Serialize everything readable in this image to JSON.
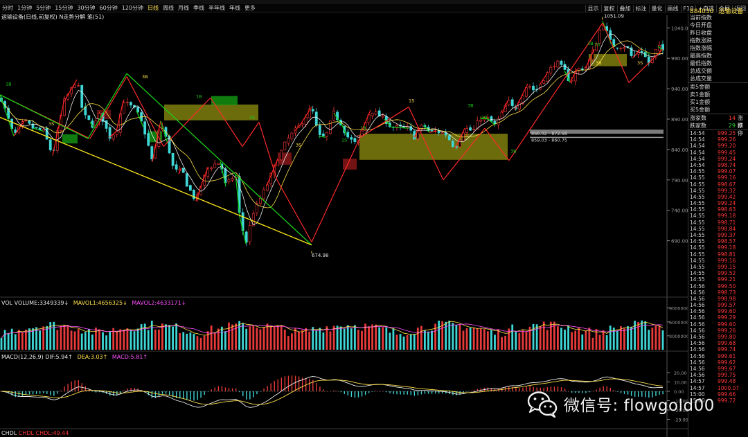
{
  "toolbar": {
    "periods": [
      "分时",
      "1分钟",
      "5分钟",
      "15分钟",
      "30分钟",
      "60分钟",
      "120分钟",
      "日线",
      "周线",
      "月线",
      "季线",
      "半年线",
      "年线",
      "更多"
    ],
    "active_period": "日线",
    "right_buttons": [
      "显示",
      "复权",
      "叠加",
      "标注",
      "量化",
      "画线",
      "F10",
      "+自选",
      "全屏",
      "返回"
    ]
  },
  "header": {
    "code": "884030",
    "name": "运输设备"
  },
  "chart_title": "运输设备(日线,前复权) N走势分解 笔(51)",
  "price_axis": [
    {
      "label": "1040.00",
      "value": 1040
    },
    {
      "label": "990.00",
      "value": 990
    },
    {
      "label": "940.00",
      "value": 940
    },
    {
      "label": "890.00",
      "value": 890
    },
    {
      "label": "840.00",
      "value": 840
    },
    {
      "label": "790.00",
      "value": 790
    },
    {
      "label": "740.00",
      "value": 740
    },
    {
      "label": "690.00",
      "value": 690
    }
  ],
  "price_annotations": {
    "high": "1051.09",
    "low": "674.98",
    "box1": "866.02 - 872.68",
    "box2": "859.03 - 860.75"
  },
  "wave_marks": [
    "3S",
    "3B",
    "3S",
    "1S",
    "1B",
    "3B",
    "3S",
    "1B",
    "1S",
    "3S",
    "3B",
    "1S",
    "3B",
    "3B",
    "1B",
    "3B",
    "3S"
  ],
  "volume": {
    "label": "VOL VOLUME:3349339↓",
    "mavol1": "MAVOL1:4656325↓",
    "mavol2": "MAVOL2:4633171↓",
    "axis": [
      "9000000",
      "6000000",
      "3000000"
    ]
  },
  "macd": {
    "label": "MACD(12,26,9) DIF:5.94↑",
    "dea": "DEA:3.03↑",
    "macd": "MACD:5.81↑",
    "axis": [
      "20.00",
      "10.00",
      "0.00",
      "-10.00",
      "-20.00",
      "-29.99"
    ]
  },
  "chdl": {
    "label": "CHDL CHDL:49.44"
  },
  "right_panel": {
    "index_labels": [
      "当前指数",
      "今日开盘",
      "昨日收盘",
      "指数涨跌",
      "指数涨幅",
      "最高指数",
      "最低指数",
      "总成交额",
      "总成交量"
    ],
    "amount_labels": [
      "卖5金额",
      "卖1金额",
      "买1金额",
      "买5金额"
    ],
    "up_label": "涨家数",
    "up_count": "14",
    "up_tail": "涨停",
    "down_label": "跌家数",
    "down_count": "29",
    "down_tail": "跌停",
    "ticks": [
      {
        "t": "14:54",
        "p": "999.25"
      },
      {
        "t": "14:54",
        "p": "999.26"
      },
      {
        "t": "14:54",
        "p": "999.20"
      },
      {
        "t": "14:54",
        "p": "999.45"
      },
      {
        "t": "14:54",
        "p": "999.24"
      },
      {
        "t": "14:54",
        "p": "998.74"
      },
      {
        "t": "14:55",
        "p": "999.07"
      },
      {
        "t": "14:55",
        "p": "999.16"
      },
      {
        "t": "14:55",
        "p": "998.67"
      },
      {
        "t": "14:55",
        "p": "999.32"
      },
      {
        "t": "14:55",
        "p": "999.42"
      },
      {
        "t": "14:55",
        "p": "999.24"
      },
      {
        "t": "14:55",
        "p": "998.63"
      },
      {
        "t": "14:55",
        "p": "999.18"
      },
      {
        "t": "14:55",
        "p": "998.71"
      },
      {
        "t": "14:55",
        "p": "998.84"
      },
      {
        "t": "14:55",
        "p": "999.37"
      },
      {
        "t": "14:55",
        "p": "998.57"
      },
      {
        "t": "14:55",
        "p": "999.18"
      },
      {
        "t": "14:55",
        "p": "998.81"
      },
      {
        "t": "14:55",
        "p": "999.16"
      },
      {
        "t": "14:55",
        "p": "999.15"
      },
      {
        "t": "14:55",
        "p": "999.52"
      },
      {
        "t": "14:55",
        "p": "999.21"
      },
      {
        "t": "14:56",
        "p": "999.50"
      },
      {
        "t": "14:56",
        "p": "998.73"
      },
      {
        "t": "14:56",
        "p": "998.98"
      },
      {
        "t": "14:56",
        "p": "999.57"
      },
      {
        "t": "14:56",
        "p": "999.60"
      },
      {
        "t": "14:56",
        "p": "999.29"
      },
      {
        "t": "14:56",
        "p": "999.60"
      },
      {
        "t": "14:56",
        "p": "999.26"
      },
      {
        "t": "14:56",
        "p": "999.80"
      },
      {
        "t": "14:56",
        "p": "999.68"
      },
      {
        "t": "14:56",
        "p": "999.74"
      },
      {
        "t": "14:56",
        "p": "999.61"
      },
      {
        "t": "14:56",
        "p": "999.62"
      },
      {
        "t": "14:56",
        "p": "999.67"
      },
      {
        "t": "14:56",
        "p": "999.75"
      },
      {
        "t": "14:57",
        "p": "999.48"
      },
      {
        "t": "14:57",
        "p": "1000.07"
      },
      {
        "t": "15:00",
        "p": "999.66"
      },
      {
        "t": "15:00",
        "p": "999.72"
      }
    ]
  },
  "watermark": {
    "text": "微信号: flowgold00"
  },
  "colors": {
    "up": "#ff3838",
    "down": "#3fd6d6",
    "stroke_up": "#ff2020",
    "stroke_down": "#10d010",
    "box": "#8a8a10",
    "axis": "#9a9a9a",
    "yellow": "#ffe14a",
    "magenta": "#ff50ff"
  }
}
